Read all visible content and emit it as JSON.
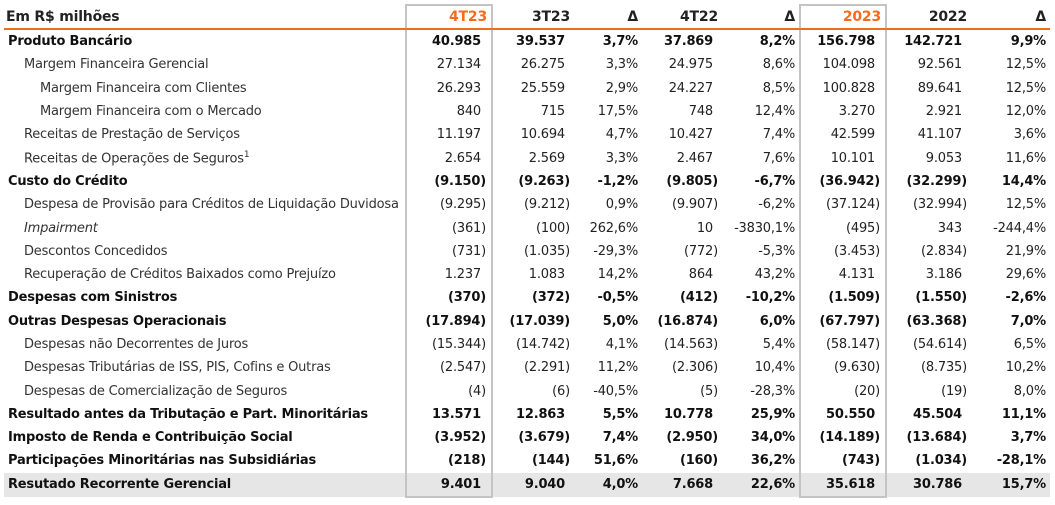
{
  "header": {
    "label": "Em R$ milhões",
    "cols": [
      "4T23",
      "3T23",
      "Δ",
      "4T22",
      "Δ",
      "2023",
      "2022",
      "Δ"
    ]
  },
  "accent": "#f26c1c",
  "rows": [
    {
      "label": "Produto Bancário",
      "level": 0,
      "bold": true,
      "values": [
        "40.985",
        "39.537",
        "3,7%",
        "37.869",
        "8,2%",
        "156.798",
        "142.721",
        "9,9%"
      ]
    },
    {
      "label": "Margem Financeira Gerencial",
      "level": 1,
      "values": [
        "27.134",
        "26.275",
        "3,3%",
        "24.975",
        "8,6%",
        "104.098",
        "92.561",
        "12,5%"
      ]
    },
    {
      "label": "Margem Financeira com Clientes",
      "level": 2,
      "values": [
        "26.293",
        "25.559",
        "2,9%",
        "24.227",
        "8,5%",
        "100.828",
        "89.641",
        "12,5%"
      ]
    },
    {
      "label": "Margem Financeira com o Mercado",
      "level": 2,
      "values": [
        "840",
        "715",
        "17,5%",
        "748",
        "12,4%",
        "3.270",
        "2.921",
        "12,0%"
      ]
    },
    {
      "label": "Receitas de Prestação de Serviços",
      "level": 1,
      "values": [
        "11.197",
        "10.694",
        "4,7%",
        "10.427",
        "7,4%",
        "42.599",
        "41.107",
        "3,6%"
      ]
    },
    {
      "label": "Receitas de Operações de Seguros",
      "sup": "1",
      "level": 1,
      "values": [
        "2.654",
        "2.569",
        "3,3%",
        "2.467",
        "7,6%",
        "10.101",
        "9.053",
        "11,6%"
      ]
    },
    {
      "label": "Custo do Crédito",
      "level": 0,
      "bold": true,
      "values": [
        "(9.150)",
        "(9.263)",
        "-1,2%",
        "(9.805)",
        "-6,7%",
        "(36.942)",
        "(32.299)",
        "14,4%"
      ]
    },
    {
      "label": "Despesa de Provisão para Créditos de Liquidação Duvidosa",
      "level": 1,
      "values": [
        "(9.295)",
        "(9.212)",
        "0,9%",
        "(9.907)",
        "-6,2%",
        "(37.124)",
        "(32.994)",
        "12,5%"
      ]
    },
    {
      "label": "Impairment",
      "level": 1,
      "italic": true,
      "values": [
        "(361)",
        "(100)",
        "262,6%",
        "10",
        "-3830,1%",
        "(495)",
        "343",
        "-244,4%"
      ]
    },
    {
      "label": "Descontos Concedidos",
      "level": 1,
      "values": [
        "(731)",
        "(1.035)",
        "-29,3%",
        "(772)",
        "-5,3%",
        "(3.453)",
        "(2.834)",
        "21,9%"
      ]
    },
    {
      "label": "Recuperação de Créditos Baixados como Prejuízo",
      "level": 1,
      "values": [
        "1.237",
        "1.083",
        "14,2%",
        "864",
        "43,2%",
        "4.131",
        "3.186",
        "29,6%"
      ]
    },
    {
      "label": "Despesas com Sinistros",
      "level": 0,
      "bold": true,
      "values": [
        "(370)",
        "(372)",
        "-0,5%",
        "(412)",
        "-10,2%",
        "(1.509)",
        "(1.550)",
        "-2,6%"
      ]
    },
    {
      "label": "Outras Despesas Operacionais",
      "level": 0,
      "bold": true,
      "values": [
        "(17.894)",
        "(17.039)",
        "5,0%",
        "(16.874)",
        "6,0%",
        "(67.797)",
        "(63.368)",
        "7,0%"
      ]
    },
    {
      "label": "Despesas não Decorrentes de Juros",
      "level": 1,
      "values": [
        "(15.344)",
        "(14.742)",
        "4,1%",
        "(14.563)",
        "5,4%",
        "(58.147)",
        "(54.614)",
        "6,5%"
      ]
    },
    {
      "label": "Despesas Tributárias de ISS, PIS, Cofins e Outras",
      "level": 1,
      "values": [
        "(2.547)",
        "(2.291)",
        "11,2%",
        "(2.306)",
        "10,4%",
        "(9.630)",
        "(8.735)",
        "10,2%"
      ]
    },
    {
      "label": "Despesas de Comercialização de Seguros",
      "level": 1,
      "values": [
        "(4)",
        "(6)",
        "-40,5%",
        "(5)",
        "-28,3%",
        "(20)",
        "(19)",
        "8,0%"
      ]
    },
    {
      "label": "Resultado antes da Tributação e Part. Minoritárias",
      "level": 0,
      "bold": true,
      "values": [
        "13.571",
        "12.863",
        "5,5%",
        "10.778",
        "25,9%",
        "50.550",
        "45.504",
        "11,1%"
      ]
    },
    {
      "label": "Imposto de Renda e Contribuição Social",
      "level": 0,
      "bold": true,
      "values": [
        "(3.952)",
        "(3.679)",
        "7,4%",
        "(2.950)",
        "34,0%",
        "(14.189)",
        "(13.684)",
        "3,7%"
      ]
    },
    {
      "label": "Participações Minoritárias nas Subsidiárias",
      "level": 0,
      "bold": true,
      "values": [
        "(218)",
        "(144)",
        "51,6%",
        "(160)",
        "36,2%",
        "(743)",
        "(1.034)",
        "-28,1%"
      ]
    },
    {
      "label": "Resutado Recorrente Gerencial",
      "level": 0,
      "bold": true,
      "values": [
        "9.401",
        "9.040",
        "4,0%",
        "7.668",
        "22,6%",
        "35.618",
        "30.786",
        "15,7%"
      ]
    }
  ]
}
